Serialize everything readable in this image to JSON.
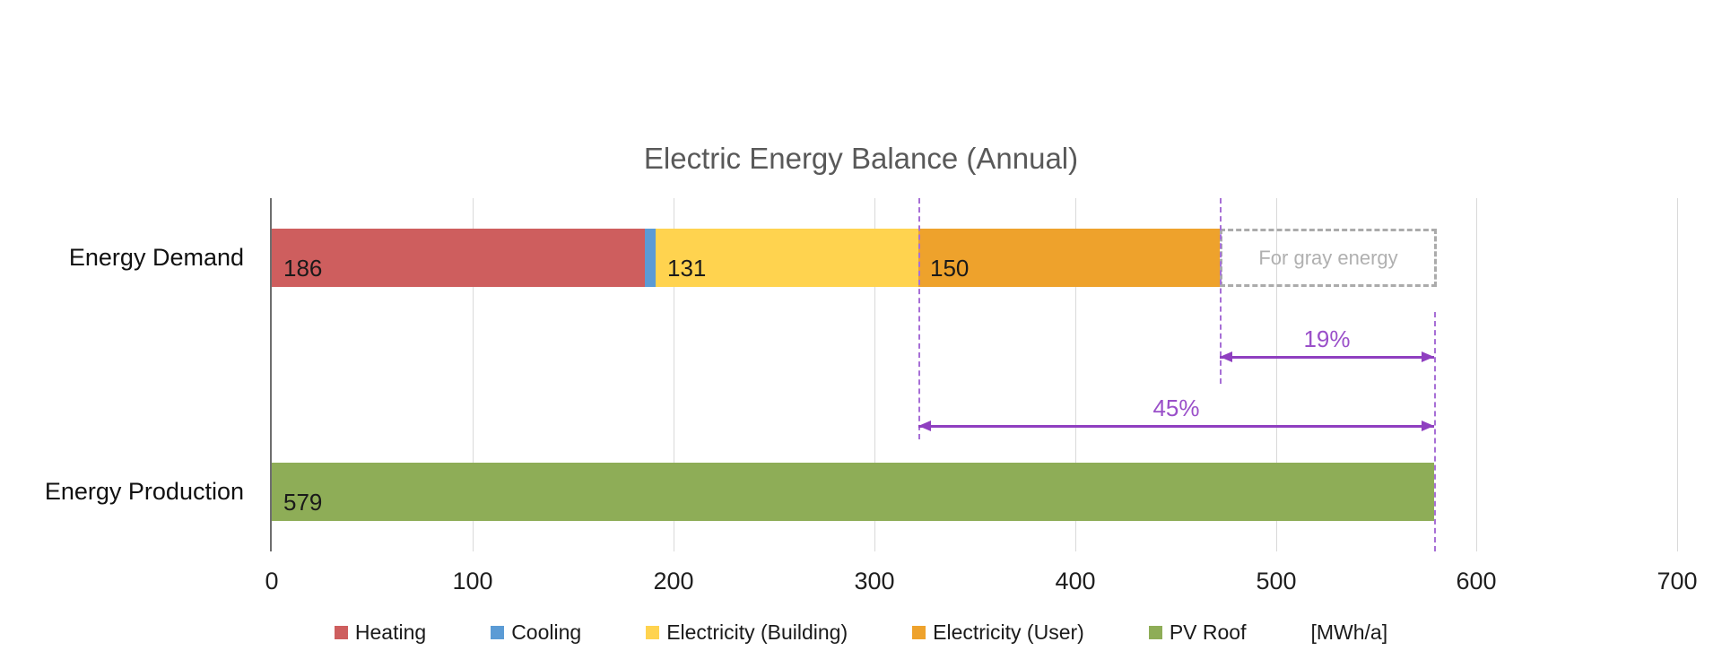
{
  "chart_data": {
    "type": "bar",
    "orientation": "horizontal",
    "stacked": true,
    "title": "Electric Energy Balance (Annual)",
    "title_color": "#595959",
    "unit_label": "[MWh/a]",
    "categories": [
      "Energy Demand",
      "Energy Production"
    ],
    "rows": [
      {
        "category": "Energy Demand",
        "segments": [
          {
            "series": "Heating",
            "value": 186,
            "label": "186"
          },
          {
            "series": "Cooling",
            "value": 5,
            "label": ""
          },
          {
            "series": "Electricity (Building)",
            "value": 131,
            "label": "131"
          },
          {
            "series": "Electricity (User)",
            "value": 150,
            "label": "150"
          }
        ]
      },
      {
        "category": "Energy Production",
        "segments": [
          {
            "series": "PV Roof",
            "value": 579,
            "label": "579"
          }
        ]
      }
    ],
    "series_colors": {
      "Heating": "#CE5E5E",
      "Cooling": "#5B9BD5",
      "Electricity (Building)": "#FFD34F",
      "Electricity (User)": "#EEA22C",
      "PV Roof": "#8EAD57"
    },
    "x_axis": {
      "min": 0,
      "max": 700,
      "tick_step": 100,
      "tick_labels": [
        "0",
        "100",
        "200",
        "300",
        "400",
        "500",
        "600",
        "700"
      ]
    },
    "grid": true,
    "legend_position": "bottom",
    "legend": [
      "Heating",
      "Cooling",
      "Electricity (Building)",
      "Electricity (User)",
      "PV Roof"
    ],
    "annotations": {
      "gray_box": {
        "label": "For gray energy",
        "row": "Energy Demand",
        "from": 472,
        "to": 580
      },
      "dashed_lines_at": [
        322,
        472,
        579
      ],
      "arrows": [
        {
          "label": "19%",
          "from": 472,
          "to": 579
        },
        {
          "label": "45%",
          "from": 322,
          "to": 579
        }
      ],
      "accent_color": "#9A4FC9"
    }
  }
}
